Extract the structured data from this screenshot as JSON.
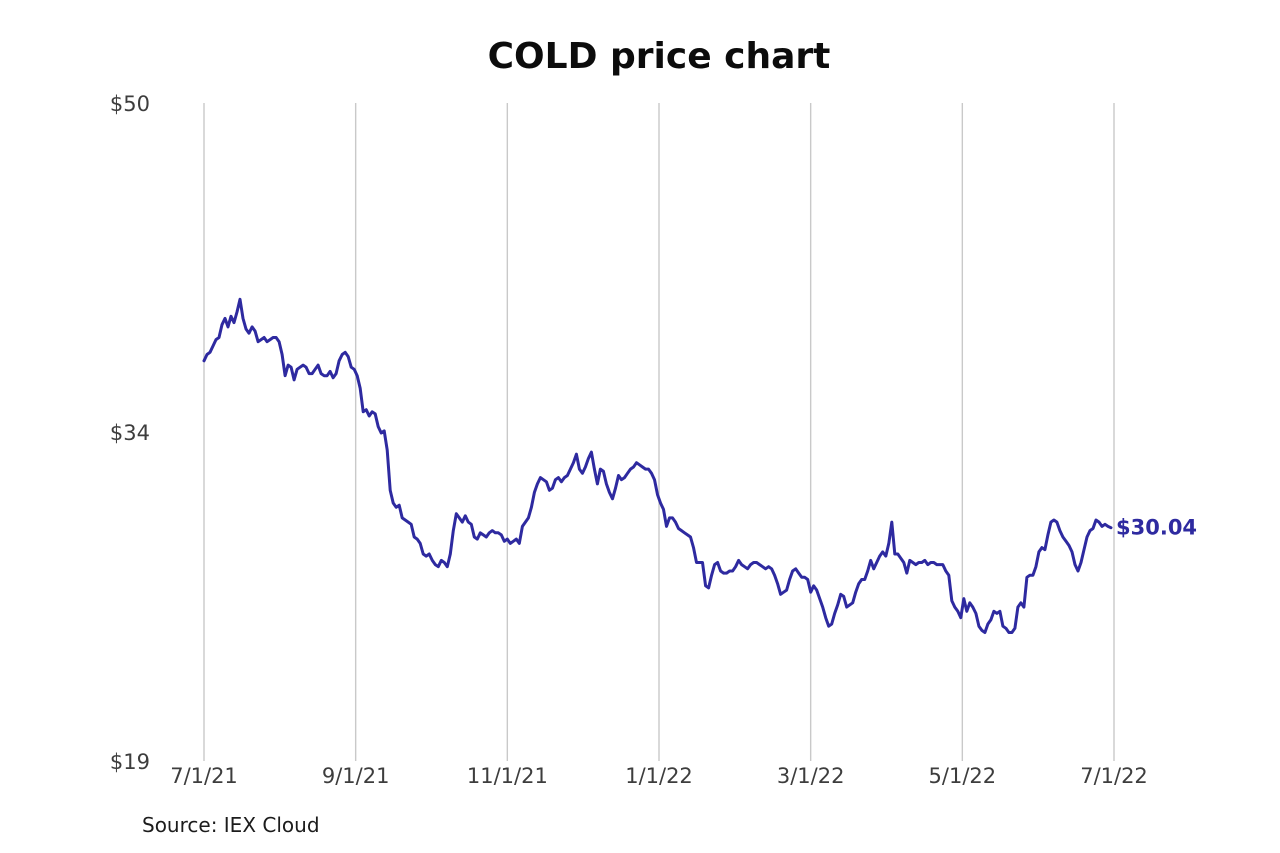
{
  "chart_data": {
    "type": "line",
    "title": "COLD price chart",
    "source": "Source: IEX Cloud",
    "symbol": "COLD",
    "end_label": "$30.04",
    "last_price": 30.04,
    "x_ticks": [
      "7/1/21",
      "9/1/21",
      "11/1/21",
      "1/1/22",
      "3/1/22",
      "5/1/22",
      "7/1/22"
    ],
    "y_ticks": [
      {
        "label": "$50",
        "frac": 0
      },
      {
        "label": "$34",
        "frac": 0.5
      },
      {
        "label": "$19",
        "frac": 1
      }
    ],
    "y_range": [
      19,
      50
    ],
    "x_range": [
      "7/1/21",
      "7/1/22"
    ],
    "grid": "vertical-only",
    "legend": "none",
    "line_color": "#2e2aa0",
    "grid_color": "#c9c9c9",
    "tick_color": "#3d3d3d",
    "prices": [
      37.9,
      38.2,
      38.3,
      38.6,
      38.9,
      39.0,
      39.6,
      39.9,
      39.5,
      40.0,
      39.7,
      40.2,
      40.8,
      39.9,
      39.4,
      39.2,
      39.5,
      39.3,
      38.8,
      38.9,
      39.0,
      38.8,
      38.9,
      39.0,
      39.0,
      38.8,
      38.2,
      37.2,
      37.7,
      37.6,
      37.0,
      37.5,
      37.6,
      37.7,
      37.6,
      37.3,
      37.3,
      37.5,
      37.7,
      37.3,
      37.2,
      37.2,
      37.4,
      37.1,
      37.3,
      37.9,
      38.2,
      38.3,
      38.1,
      37.6,
      37.5,
      37.2,
      36.6,
      35.5,
      35.6,
      35.3,
      35.5,
      35.4,
      34.8,
      34.5,
      34.6,
      33.7,
      31.8,
      31.2,
      31.0,
      31.1,
      30.5,
      30.4,
      30.3,
      30.2,
      29.6,
      29.5,
      29.3,
      28.8,
      28.7,
      28.8,
      28.5,
      28.3,
      28.2,
      28.5,
      28.4,
      28.2,
      28.8,
      29.9,
      30.7,
      30.5,
      30.3,
      30.6,
      30.3,
      30.2,
      29.6,
      29.5,
      29.8,
      29.7,
      29.6,
      29.8,
      29.9,
      29.8,
      29.8,
      29.7,
      29.4,
      29.5,
      29.3,
      29.4,
      29.5,
      29.3,
      30.1,
      30.3,
      30.5,
      31.0,
      31.7,
      32.1,
      32.4,
      32.3,
      32.2,
      31.8,
      31.9,
      32.3,
      32.4,
      32.2,
      32.4,
      32.5,
      32.8,
      33.1,
      33.5,
      32.8,
      32.6,
      32.9,
      33.3,
      33.6,
      32.8,
      32.1,
      32.8,
      32.7,
      32.1,
      31.7,
      31.4,
      31.9,
      32.5,
      32.3,
      32.4,
      32.6,
      32.8,
      32.9,
      33.1,
      33.0,
      32.9,
      32.8,
      32.8,
      32.6,
      32.3,
      31.6,
      31.2,
      30.9,
      30.1,
      30.5,
      30.5,
      30.3,
      30.0,
      29.9,
      29.8,
      29.7,
      29.6,
      29.1,
      28.4,
      28.4,
      28.4,
      27.3,
      27.2,
      27.8,
      28.3,
      28.4,
      28.0,
      27.9,
      27.9,
      28.0,
      28.0,
      28.2,
      28.5,
      28.3,
      28.2,
      28.1,
      28.3,
      28.4,
      28.4,
      28.3,
      28.2,
      28.1,
      28.2,
      28.1,
      27.8,
      27.4,
      26.9,
      27.0,
      27.1,
      27.6,
      28.0,
      28.1,
      27.9,
      27.7,
      27.7,
      27.6,
      27.0,
      27.3,
      27.1,
      26.7,
      26.3,
      25.8,
      25.4,
      25.5,
      26.0,
      26.4,
      26.9,
      26.8,
      26.3,
      26.4,
      26.5,
      27.0,
      27.4,
      27.6,
      27.6,
      28.0,
      28.5,
      28.1,
      28.4,
      28.7,
      28.9,
      28.7,
      29.3,
      30.3,
      28.8,
      28.8,
      28.6,
      28.4,
      27.9,
      28.5,
      28.4,
      28.3,
      28.4,
      28.4,
      28.5,
      28.3,
      28.4,
      28.4,
      28.3,
      28.3,
      28.3,
      28.0,
      27.8,
      26.6,
      26.3,
      26.1,
      25.8,
      26.7,
      26.1,
      26.5,
      26.3,
      26.0,
      25.4,
      25.2,
      25.1,
      25.5,
      25.7,
      26.1,
      26.0,
      26.1,
      25.4,
      25.3,
      25.1,
      25.1,
      25.3,
      26.3,
      26.5,
      26.3,
      27.7,
      27.8,
      27.8,
      28.2,
      28.9,
      29.1,
      29.0,
      29.7,
      30.3,
      30.4,
      30.3,
      29.9,
      29.6,
      29.4,
      29.2,
      28.9,
      28.3,
      28.0,
      28.4,
      29.0,
      29.6,
      29.9,
      30.0,
      30.4,
      30.3,
      30.1,
      30.2,
      30.1,
      30.04
    ]
  }
}
